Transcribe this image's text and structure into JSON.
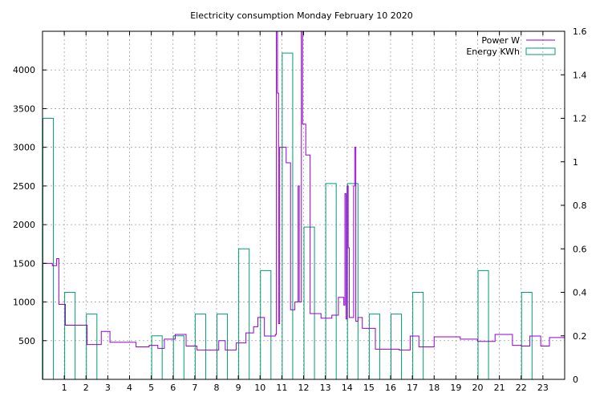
{
  "chart_data": {
    "type": "line",
    "title": "Electricity consumption Monday February 10 2020",
    "xlabel": "",
    "ylabel": "",
    "y2label": "",
    "xlim": [
      0,
      24
    ],
    "ylim": [
      0,
      4500
    ],
    "y2lim": [
      0,
      1.6
    ],
    "xticks": [
      1,
      2,
      3,
      4,
      5,
      6,
      7,
      8,
      9,
      10,
      11,
      12,
      13,
      14,
      15,
      16,
      17,
      18,
      19,
      20,
      21,
      22,
      23
    ],
    "yticks": [
      500,
      1000,
      1500,
      2000,
      2500,
      3000,
      3500,
      4000
    ],
    "y2ticks": [
      0,
      0.2,
      0.4,
      0.6,
      0.8,
      1,
      1.2,
      1.4,
      1.6
    ],
    "grid": true,
    "legend_position": "top-right",
    "series": [
      {
        "name": "Power W",
        "axis": "left",
        "style": "step",
        "color": "#9400d3",
        "x": [
          0,
          0.45,
          0.65,
          0.75,
          1.05,
          1.6,
          2.05,
          2.25,
          2.7,
          3.1,
          4.3,
          4.9,
          5.3,
          5.6,
          6.1,
          6.6,
          7.1,
          7.7,
          8.1,
          8.4,
          8.9,
          9.1,
          9.35,
          9.7,
          9.9,
          10.2,
          10.7,
          10.75,
          10.8,
          10.85,
          10.9,
          10.95,
          11.2,
          11.4,
          11.5,
          11.6,
          11.75,
          11.8,
          11.9,
          11.95,
          12.1,
          12.3,
          12.8,
          13.0,
          13.3,
          13.6,
          13.85,
          13.9,
          13.95,
          14.0,
          14.05,
          14.1,
          14.3,
          14.35,
          14.4,
          14.5,
          14.7,
          14.9,
          15.3,
          15.9,
          16.4,
          16.9,
          17.3,
          18.0,
          19.2,
          20.0,
          20.8,
          21.6,
          22.0,
          22.4,
          22.9,
          23.3,
          24.0
        ],
        "values": [
          1500,
          1470,
          1560,
          970,
          700,
          700,
          450,
          450,
          620,
          480,
          420,
          440,
          400,
          520,
          580,
          430,
          380,
          380,
          500,
          380,
          470,
          470,
          600,
          680,
          800,
          560,
          580,
          4500,
          3700,
          720,
          3000,
          3000,
          2800,
          900,
          900,
          1000,
          2500,
          1000,
          4500,
          3300,
          2900,
          850,
          790,
          790,
          830,
          1060,
          960,
          2400,
          780,
          2500,
          1700,
          800,
          2500,
          3000,
          750,
          800,
          660,
          660,
          390,
          390,
          380,
          560,
          420,
          550,
          520,
          490,
          580,
          440,
          430,
          560,
          430,
          540,
          510
        ]
      },
      {
        "name": "Energy KWh",
        "axis": "right",
        "style": "boxes",
        "color": "#009e73",
        "x": [
          0,
          1,
          2,
          3,
          4,
          5,
          6,
          7,
          8,
          9,
          10,
          11,
          12,
          13,
          14,
          15,
          16,
          17,
          18,
          19,
          20,
          21,
          22,
          23
        ],
        "values": [
          1.2,
          0.4,
          0.3,
          0.0,
          0.0,
          0.2,
          0.2,
          0.3,
          0.3,
          0.6,
          0.5,
          1.5,
          0.7,
          0.9,
          0.9,
          0.3,
          0.3,
          0.4,
          0.0,
          0.0,
          0.5,
          0.0,
          0.4,
          0.0
        ]
      }
    ]
  }
}
